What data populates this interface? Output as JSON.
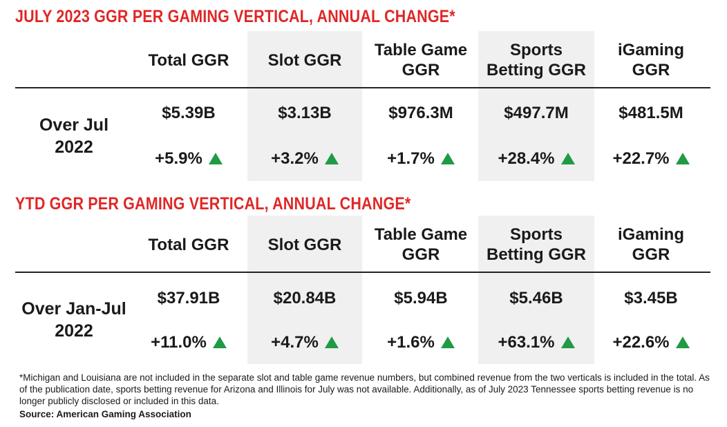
{
  "chart_data": [
    {
      "type": "table",
      "title": "JULY 2023 GGR PER GAMING VERTICAL, ANNUAL CHANGE*",
      "columns": [
        {
          "lines": [
            "Total GGR"
          ]
        },
        {
          "lines": [
            "Slot GGR"
          ]
        },
        {
          "lines": [
            "Table Game",
            "GGR"
          ]
        },
        {
          "lines": [
            "Sports",
            "Betting GGR"
          ]
        },
        {
          "lines": [
            "iGaming",
            "GGR"
          ]
        }
      ],
      "row_label": [
        "Over Jul",
        "2022"
      ],
      "values": [
        "$5.39B",
        "$3.13B",
        "$976.3M",
        "$497.7M",
        "$481.5M"
      ],
      "changes": [
        "+5.9%",
        "+3.2%",
        "+1.7%",
        "+28.4%",
        "+22.7%"
      ],
      "change_direction": "up",
      "change_color": "#1f9a45"
    },
    {
      "type": "table",
      "title": "YTD GGR PER GAMING VERTICAL, ANNUAL CHANGE*",
      "columns": [
        {
          "lines": [
            "Total GGR"
          ]
        },
        {
          "lines": [
            "Slot GGR"
          ]
        },
        {
          "lines": [
            "Table Game",
            "GGR"
          ]
        },
        {
          "lines": [
            "Sports",
            "Betting GGR"
          ]
        },
        {
          "lines": [
            "iGaming",
            "GGR"
          ]
        }
      ],
      "row_label": [
        "Over Jan-Jul",
        "2022"
      ],
      "values": [
        "$37.91B",
        "$20.84B",
        "$5.94B",
        "$5.46B",
        "$3.45B"
      ],
      "changes": [
        "+11.0%",
        "+4.7%",
        "+1.6%",
        "+63.1%",
        "+22.6%"
      ],
      "change_direction": "up",
      "change_color": "#1f9a45"
    }
  ],
  "title_color": "#e02626",
  "footnote": "*Michigan and Louisiana are not included in the separate slot and table game revenue numbers, but combined revenue from the two verticals is included in the total. As of the publication date, sports betting revenue for Arizona and Illinois for July was not available. Additionally, as of July 2023 Tennessee sports betting revenue is no longer publicly disclosed or included in this data.",
  "source": "Source: American Gaming Association"
}
